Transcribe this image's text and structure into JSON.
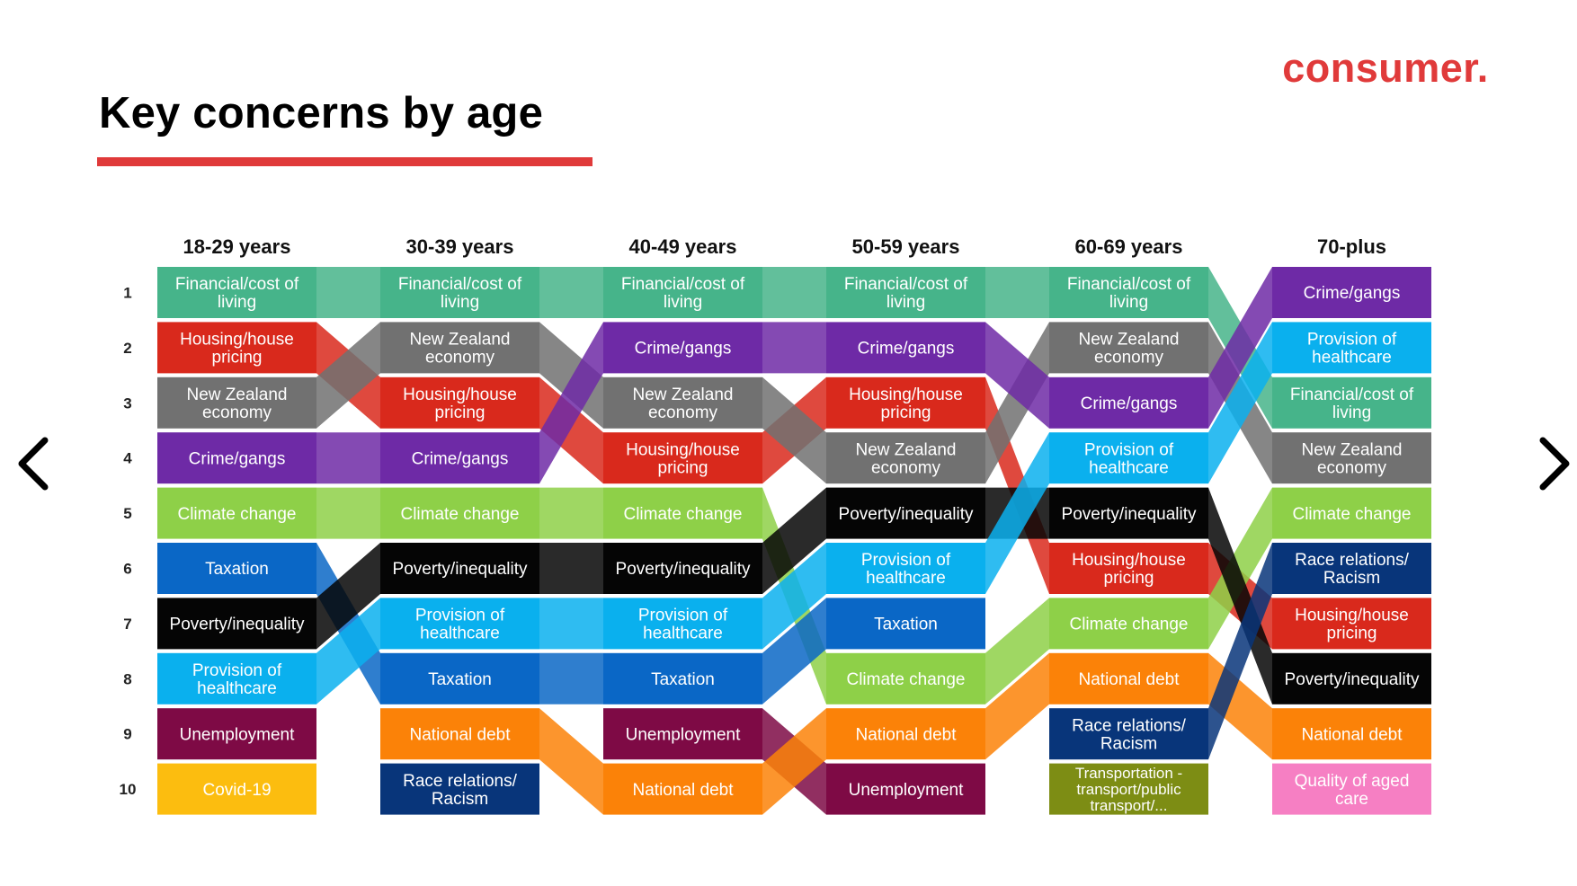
{
  "page": {
    "title": "Key concerns by age",
    "brand": "consumer.",
    "accent_color": "#e03a3a",
    "prev_icon": "chevron-left-icon",
    "next_icon": "chevron-right-icon"
  },
  "chart_data": {
    "type": "bump",
    "categories": [
      "18-29 years",
      "30-39 years",
      "40-49 years",
      "50-59 years",
      "60-69 years",
      "70-plus"
    ],
    "ranks": [
      "1",
      "2",
      "3",
      "4",
      "5",
      "6",
      "7",
      "8",
      "9",
      "10"
    ],
    "topics": [
      {
        "name": "Financial/cost of living",
        "lines": [
          "Financial/cost of",
          "living"
        ],
        "color": "#46b48a",
        "ranks": [
          1,
          1,
          1,
          1,
          1,
          3
        ]
      },
      {
        "name": "Housing/house pricing",
        "lines": [
          "Housing/house",
          "pricing"
        ],
        "color": "#d9291c",
        "ranks": [
          2,
          3,
          4,
          3,
          6,
          7
        ]
      },
      {
        "name": "New Zealand economy",
        "lines": [
          "New Zealand",
          "economy"
        ],
        "color": "#717171",
        "ranks": [
          3,
          2,
          3,
          4,
          2,
          4
        ]
      },
      {
        "name": "Crime/gangs",
        "lines": [
          "Crime/gangs"
        ],
        "color": "#6e2aa6",
        "ranks": [
          4,
          4,
          2,
          2,
          3,
          1
        ]
      },
      {
        "name": "Climate change",
        "lines": [
          "Climate change"
        ],
        "color": "#8ed048",
        "ranks": [
          5,
          5,
          5,
          8,
          7,
          5
        ]
      },
      {
        "name": "Taxation",
        "lines": [
          "Taxation"
        ],
        "color": "#0a67c6",
        "ranks": [
          6,
          8,
          8,
          7,
          null,
          null
        ]
      },
      {
        "name": "Poverty/inequality",
        "lines": [
          "Poverty/inequality"
        ],
        "color": "#050505",
        "ranks": [
          7,
          6,
          6,
          5,
          5,
          8
        ]
      },
      {
        "name": "Provision of healthcare",
        "lines": [
          "Provision of",
          "healthcare"
        ],
        "color": "#0ab0ee",
        "ranks": [
          8,
          7,
          7,
          6,
          4,
          2
        ]
      },
      {
        "name": "Unemployment",
        "lines": [
          "Unemployment"
        ],
        "color": "#7e0a45",
        "ranks": [
          9,
          null,
          9,
          10,
          null,
          null
        ]
      },
      {
        "name": "Covid-19",
        "lines": [
          "Covid-19"
        ],
        "color": "#fcbd0f",
        "ranks": [
          10,
          null,
          null,
          null,
          null,
          null
        ]
      },
      {
        "name": "National debt",
        "lines": [
          "National debt"
        ],
        "color": "#fb8208",
        "ranks": [
          null,
          9,
          10,
          9,
          8,
          9
        ]
      },
      {
        "name": "Race relations/ Racism",
        "lines": [
          "Race relations/",
          "Racism"
        ],
        "color": "#08357a",
        "ranks": [
          null,
          10,
          null,
          null,
          9,
          6
        ]
      },
      {
        "name": "Transportation - transport/public transport/...",
        "lines": [
          "Transportation -",
          "transport/public",
          "transport/..."
        ],
        "color": "#7d8d14",
        "ranks": [
          null,
          null,
          null,
          null,
          10,
          null
        ]
      },
      {
        "name": "Quality of aged care",
        "lines": [
          "Quality of aged",
          "care"
        ],
        "color": "#f67fc3",
        "ranks": [
          null,
          null,
          null,
          null,
          null,
          10
        ]
      }
    ]
  }
}
